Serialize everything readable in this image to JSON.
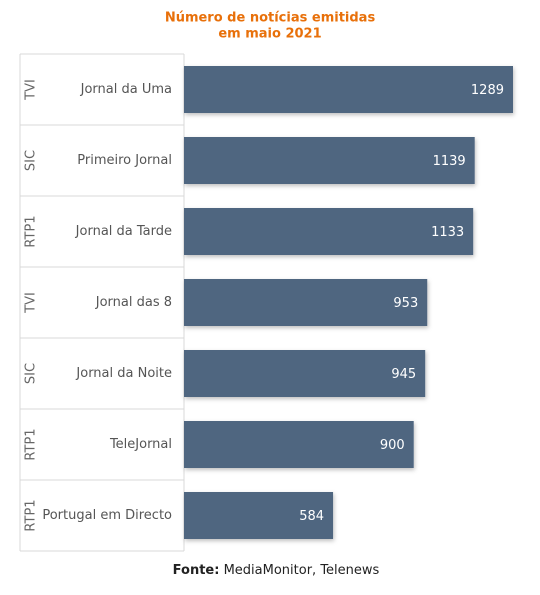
{
  "chart_data": {
    "type": "bar",
    "orientation": "horizontal",
    "title": [
      "Número de notícias emitidas",
      "em maio 2021"
    ],
    "categories": [
      "Jornal da Uma",
      "Primeiro Jornal",
      "Jornal da Tarde",
      "Jornal das 8",
      "Jornal da Noite",
      "TeleJornal",
      "Portugal em Directo"
    ],
    "groups": [
      "TVI",
      "SIC",
      "RTP1",
      "TVI",
      "SIC",
      "RTP1",
      "RTP1"
    ],
    "values": [
      1289,
      1139,
      1133,
      953,
      945,
      900,
      584
    ],
    "color": "#4f6680",
    "source": {
      "label": "Fonte:",
      "text": "MediaMonitor, Telenews"
    }
  }
}
